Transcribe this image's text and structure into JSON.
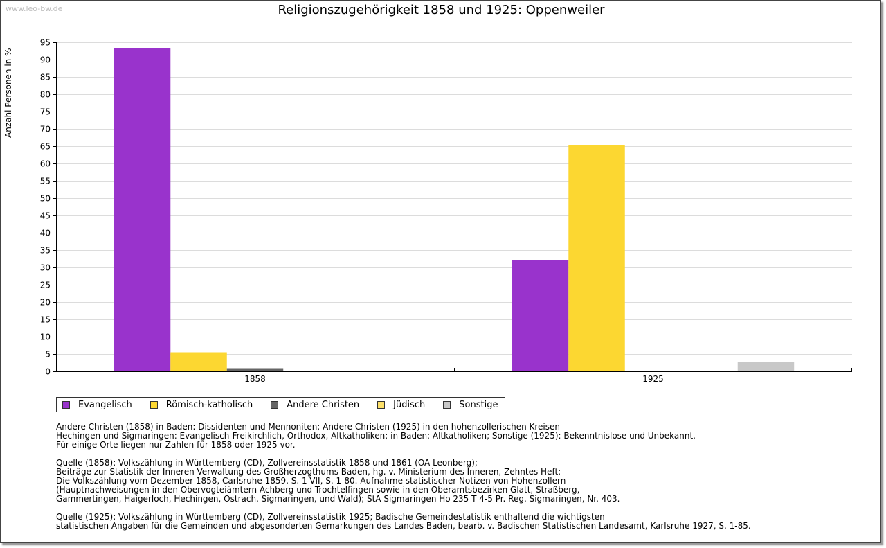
{
  "watermark": "www.leo-bw.de",
  "chart_data": {
    "type": "bar",
    "title": "Religionszugehörigkeit 1858 und 1925: Oppenweiler",
    "xlabel": "",
    "ylabel": "Anzahl Personen in %",
    "ylim": [
      0,
      95
    ],
    "ytick_step": 5,
    "grid": true,
    "categories": [
      "1858",
      "1925"
    ],
    "series": [
      {
        "name": "Evangelisch",
        "color": "#9933cc",
        "values": [
          93.4,
          32.1
        ]
      },
      {
        "name": "Römisch-katholisch",
        "color": "#fcd731",
        "values": [
          5.5,
          65.2
        ]
      },
      {
        "name": "Andere Christen",
        "color": "#666666",
        "values": [
          0.9,
          0
        ]
      },
      {
        "name": "Jüdisch",
        "color": "#fde068",
        "values": [
          0,
          0
        ]
      },
      {
        "name": "Sonstige",
        "color": "#c8c8c8",
        "values": [
          0,
          2.7
        ]
      }
    ],
    "legend_position": "bottom-left"
  },
  "notes": [
    {
      "lines": [
        "Andere Christen (1858) in Baden: Dissidenten und Mennoniten; Andere Christen (1925) in den hohenzollerischen Kreisen",
        "Hechingen und Sigmaringen: Evangelisch-Freikirchlich, Orthodox, Altkatholiken; in Baden: Altkatholiken; Sonstige (1925): Bekenntnislose und Unbekannt.",
        "Für einige Orte liegen nur Zahlen für 1858 oder 1925 vor."
      ]
    },
    {
      "lines": [
        "Quelle (1858): Volkszählung in Württemberg (CD), Zollvereinsstatistik 1858 und 1861 (OA Leonberg);",
        "Beiträge zur Statistik der Inneren Verwaltung des Großherzogthums Baden, hg. v. Ministerium des Inneren, Zehntes Heft:",
        "Die Volkszählung vom Dezember 1858, Carlsruhe 1859, S. 1-VII, S. 1-80. Aufnahme statistischer Notizen von Hohenzollern",
        "(Hauptnachweisungen in den Obervogteiämtern Achberg und Trochtelfingen sowie in den Oberamtsbezirken Glatt, Straßberg,",
        "Gammertingen, Haigerloch, Hechingen, Ostrach, Sigmaringen, und Wald); StA Sigmaringen Ho 235 T 4-5 Pr. Reg. Sigmaringen, Nr. 403."
      ]
    },
    {
      "lines": [
        "Quelle (1925): Volkszählung in Württemberg (CD), Zollvereinsstatistik 1925; Badische Gemeindestatistik enthaltend die wichtigsten",
        "statistischen Angaben für die Gemeinden und abgesonderten Gemarkungen des Landes Baden, bearb. v. Badischen Statistischen Landesamt, Karlsruhe 1927, S. 1-85."
      ]
    }
  ]
}
